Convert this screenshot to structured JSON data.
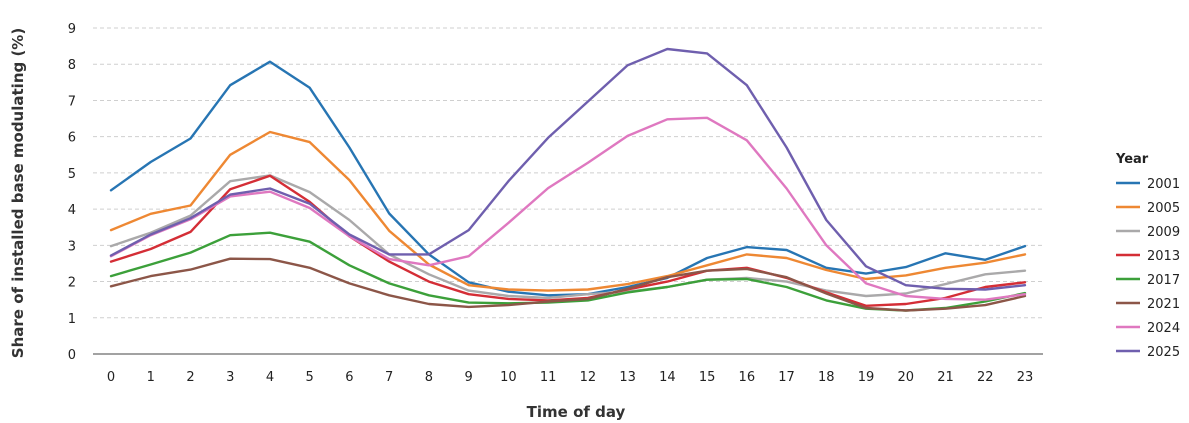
{
  "chart_data": {
    "type": "line",
    "xlabel": "Time of day",
    "ylabel": "Share of installed base modulating (%)",
    "ylim": [
      0,
      9
    ],
    "yticks": [
      0,
      1,
      2,
      3,
      4,
      5,
      6,
      7,
      8,
      9
    ],
    "x": [
      0,
      1,
      2,
      3,
      4,
      5,
      6,
      7,
      8,
      9,
      10,
      11,
      12,
      13,
      14,
      15,
      16,
      17,
      18,
      19,
      20,
      21,
      22,
      23
    ],
    "grid": "horizontal-dashed",
    "legend": {
      "title": "Year",
      "placement": "right"
    },
    "series": [
      {
        "name": "2001",
        "color": "#2775b3",
        "values": [
          4.52,
          5.3,
          5.95,
          7.42,
          8.07,
          7.35,
          5.7,
          3.88,
          2.75,
          1.98,
          1.72,
          1.62,
          1.65,
          1.85,
          2.1,
          2.65,
          2.95,
          2.87,
          2.38,
          2.22,
          2.4,
          2.78,
          2.6,
          2.98
        ]
      },
      {
        "name": "2005",
        "color": "#ee8833",
        "values": [
          3.42,
          3.87,
          4.1,
          5.5,
          6.13,
          5.85,
          4.8,
          3.4,
          2.47,
          1.9,
          1.78,
          1.75,
          1.78,
          1.93,
          2.15,
          2.45,
          2.75,
          2.65,
          2.32,
          2.07,
          2.17,
          2.38,
          2.52,
          2.75
        ]
      },
      {
        "name": "2009",
        "color": "#aaa9aa",
        "values": [
          2.98,
          3.35,
          3.82,
          4.77,
          4.93,
          4.47,
          3.7,
          2.75,
          2.2,
          1.75,
          1.6,
          1.55,
          1.65,
          1.72,
          1.85,
          2.05,
          2.1,
          2.0,
          1.75,
          1.6,
          1.67,
          1.93,
          2.2,
          2.3
        ]
      },
      {
        "name": "2013",
        "color": "#d42e36",
        "values": [
          2.55,
          2.9,
          3.37,
          4.55,
          4.92,
          4.2,
          3.25,
          2.55,
          2.0,
          1.65,
          1.52,
          1.48,
          1.55,
          1.78,
          2.0,
          2.3,
          2.38,
          2.1,
          1.7,
          1.33,
          1.38,
          1.55,
          1.85,
          1.98
        ]
      },
      {
        "name": "2017",
        "color": "#3ca03a",
        "values": [
          2.15,
          2.47,
          2.8,
          3.28,
          3.35,
          3.1,
          2.45,
          1.95,
          1.62,
          1.42,
          1.4,
          1.42,
          1.48,
          1.7,
          1.85,
          2.05,
          2.07,
          1.85,
          1.48,
          1.25,
          1.2,
          1.27,
          1.45,
          1.68
        ]
      },
      {
        "name": "2021",
        "color": "#8c5648",
        "values": [
          1.87,
          2.15,
          2.33,
          2.63,
          2.62,
          2.38,
          1.95,
          1.62,
          1.38,
          1.3,
          1.35,
          1.45,
          1.52,
          1.8,
          2.12,
          2.3,
          2.35,
          2.12,
          1.67,
          1.27,
          1.2,
          1.25,
          1.35,
          1.6
        ]
      },
      {
        "name": "2024",
        "color": "#df78c0",
        "values": [
          2.7,
          3.28,
          3.72,
          4.35,
          4.48,
          4.03,
          3.25,
          2.62,
          2.45,
          2.7,
          3.62,
          4.58,
          5.28,
          6.02,
          6.48,
          6.52,
          5.9,
          4.57,
          3.0,
          1.95,
          1.6,
          1.52,
          1.5,
          1.65
        ]
      },
      {
        "name": "2025",
        "color": "#6f5fae",
        "values": [
          2.72,
          3.3,
          3.75,
          4.4,
          4.57,
          4.15,
          3.3,
          2.75,
          2.75,
          3.42,
          4.77,
          5.97,
          6.97,
          7.97,
          8.42,
          8.3,
          7.42,
          5.7,
          3.7,
          2.42,
          1.9,
          1.8,
          1.78,
          1.9
        ]
      }
    ]
  }
}
